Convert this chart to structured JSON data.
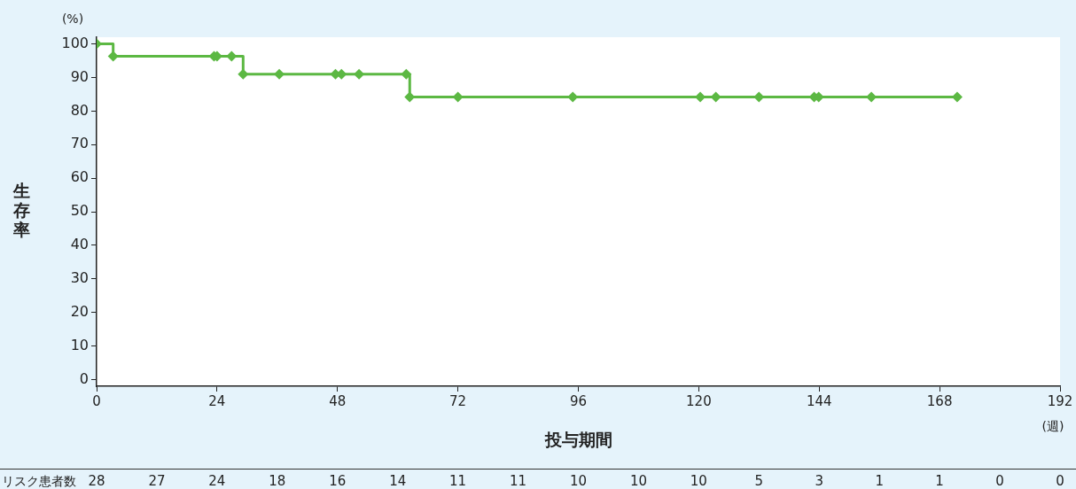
{
  "chart_data": {
    "type": "step",
    "ylabel": "生存率",
    "xlabel": "投与期間",
    "annotations": [
      "(%)",
      "(週)",
      "リスク患者数",
      "28",
      "27",
      "24",
      "18",
      "16",
      "14",
      "11",
      "11",
      "10",
      "10",
      "10",
      "5",
      "3",
      "1",
      "1",
      "0",
      "0"
    ],
    "series": [
      {
        "color": "#5cb843",
        "x": [
          0,
          3.3,
          23.4,
          24,
          26.9,
          29.2,
          36.4,
          47.6,
          48.8,
          52.3,
          61.7,
          62.4,
          72,
          94.9,
          120.3,
          123.4,
          132,
          143,
          143.9,
          154.4,
          171.5
        ],
        "values": [
          100,
          96.3,
          96.3,
          96.3,
          96.3,
          91,
          91,
          91,
          91,
          91,
          91,
          84.2,
          84.2,
          84.2,
          84.2,
          84.2,
          84.2,
          84.2,
          84.2,
          84.2,
          84.2
        ]
      }
    ],
    "xlim": [
      0,
      192
    ],
    "xticks": [
      0,
      24,
      48,
      72,
      96,
      120,
      144,
      168,
      192
    ],
    "ylim": [
      -2,
      102
    ],
    "yticks": [
      0,
      10,
      20,
      30,
      40,
      50,
      60,
      70,
      80,
      90,
      100
    ],
    "grid": false,
    "legend": false,
    "marker": "diamond",
    "line_style": "solid"
  }
}
